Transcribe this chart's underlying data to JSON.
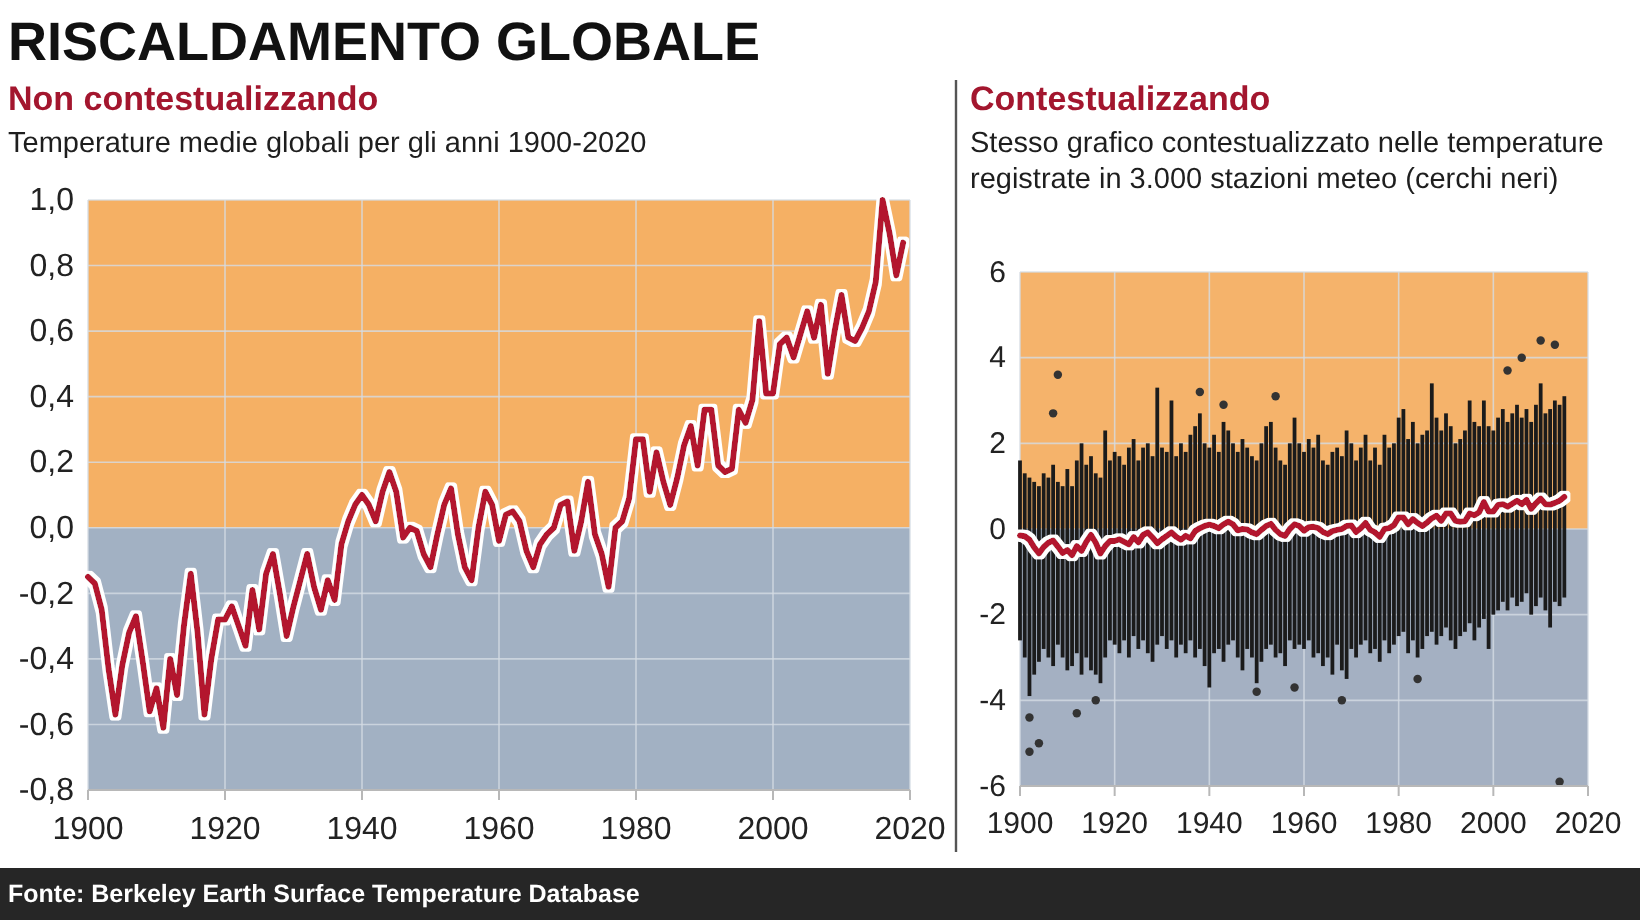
{
  "chart_data": [
    {
      "type": "line",
      "title": "Non contestualizzando",
      "subtitle": "Temperature medie globali per gli anni 1900-2020",
      "annotations": [
        "RISCALDAMENTO GLOBALE",
        "Fonte: Berkeley Earth Surface Temperature Database"
      ],
      "x": [
        1900,
        1901,
        1902,
        1903,
        1904,
        1905,
        1906,
        1907,
        1908,
        1909,
        1910,
        1911,
        1912,
        1913,
        1914,
        1915,
        1916,
        1917,
        1918,
        1919,
        1920,
        1921,
        1922,
        1923,
        1924,
        1925,
        1926,
        1927,
        1928,
        1929,
        1930,
        1931,
        1932,
        1933,
        1934,
        1935,
        1936,
        1937,
        1938,
        1939,
        1940,
        1941,
        1942,
        1943,
        1944,
        1945,
        1946,
        1947,
        1948,
        1949,
        1950,
        1951,
        1952,
        1953,
        1954,
        1955,
        1956,
        1957,
        1958,
        1959,
        1960,
        1961,
        1962,
        1963,
        1964,
        1965,
        1966,
        1967,
        1968,
        1969,
        1970,
        1971,
        1972,
        1973,
        1974,
        1975,
        1976,
        1977,
        1978,
        1979,
        1980,
        1981,
        1982,
        1983,
        1984,
        1985,
        1986,
        1987,
        1988,
        1989,
        1990,
        1991,
        1992,
        1993,
        1994,
        1995,
        1996,
        1997,
        1998,
        1999,
        2000,
        2001,
        2002,
        2003,
        2004,
        2005,
        2006,
        2007,
        2008,
        2009,
        2010,
        2011,
        2012,
        2013,
        2014,
        2015,
        2016,
        2017,
        2018,
        2019
      ],
      "values": [
        -0.15,
        -0.17,
        -0.25,
        -0.43,
        -0.57,
        -0.42,
        -0.32,
        -0.27,
        -0.41,
        -0.56,
        -0.49,
        -0.61,
        -0.4,
        -0.51,
        -0.3,
        -0.14,
        -0.32,
        -0.57,
        -0.4,
        -0.28,
        -0.28,
        -0.24,
        -0.3,
        -0.36,
        -0.19,
        -0.31,
        -0.14,
        -0.08,
        -0.2,
        -0.33,
        -0.24,
        -0.16,
        -0.08,
        -0.18,
        -0.25,
        -0.16,
        -0.22,
        -0.05,
        0.02,
        0.07,
        0.1,
        0.07,
        0.02,
        0.11,
        0.17,
        0.11,
        -0.03,
        0,
        -0.01,
        -0.08,
        -0.12,
        -0.02,
        0.07,
        0.12,
        -0.02,
        -0.12,
        -0.16,
        0,
        0.11,
        0.07,
        -0.04,
        0.04,
        0.05,
        0.02,
        -0.07,
        -0.12,
        -0.05,
        -0.02,
        0,
        0.07,
        0.08,
        -0.07,
        0.02,
        0.14,
        -0.02,
        -0.08,
        -0.18,
        0,
        0.02,
        0.09,
        0.27,
        0.27,
        0.11,
        0.23,
        0.14,
        0.07,
        0.15,
        0.25,
        0.31,
        0.19,
        0.36,
        0.36,
        0.19,
        0.17,
        0.18,
        0.36,
        0.32,
        0.39,
        0.63,
        0.41,
        0.41,
        0.56,
        0.58,
        0.52,
        0.59,
        0.66,
        0.58,
        0.68,
        0.47,
        0.6,
        0.71,
        0.58,
        0.57,
        0.61,
        0.66,
        0.75,
        1.0,
        0.9,
        0.77,
        0.87
      ],
      "color": "#b3152f",
      "xlim": [
        1900,
        2020
      ],
      "xticks": [
        1900,
        1920,
        1940,
        1960,
        1980,
        2000,
        2020
      ],
      "ylim": [
        -0.8,
        1.0
      ],
      "yticks": [
        {
          "value": -0.8,
          "label": "-0,8"
        },
        {
          "value": -0.6,
          "label": "-0,6"
        },
        {
          "value": -0.4,
          "label": "-0,4"
        },
        {
          "value": -0.2,
          "label": "-0,2"
        },
        {
          "value": 0,
          "label": "0,0"
        },
        {
          "value": 0.2,
          "label": "0,2"
        },
        {
          "value": 0.4,
          "label": "0,4"
        },
        {
          "value": 0.6,
          "label": "0,6"
        },
        {
          "value": 0.8,
          "label": "0,8"
        },
        {
          "value": 1.0,
          "label": "1,0"
        }
      ],
      "grid": true,
      "bands": [
        {
          "axis": "y",
          "from": 0,
          "to": 1.0,
          "color": "#f5b064"
        },
        {
          "axis": "y",
          "from": -0.8,
          "to": 0,
          "color": "#a2b1c3"
        }
      ]
    },
    {
      "type": "bar",
      "title": "Contestualizzando",
      "subtitle": "Stesso grafico contestualizzato nelle temperature registrate in 3.000 stazioni meteo (cerchi neri)",
      "x": [
        1900,
        1901,
        1902,
        1903,
        1904,
        1905,
        1906,
        1907,
        1908,
        1909,
        1910,
        1911,
        1912,
        1913,
        1914,
        1915,
        1916,
        1917,
        1918,
        1919,
        1920,
        1921,
        1922,
        1923,
        1924,
        1925,
        1926,
        1927,
        1928,
        1929,
        1930,
        1931,
        1932,
        1933,
        1934,
        1935,
        1936,
        1937,
        1938,
        1939,
        1940,
        1941,
        1942,
        1943,
        1944,
        1945,
        1946,
        1947,
        1948,
        1949,
        1950,
        1951,
        1952,
        1953,
        1954,
        1955,
        1956,
        1957,
        1958,
        1959,
        1960,
        1961,
        1962,
        1963,
        1964,
        1965,
        1966,
        1967,
        1968,
        1969,
        1970,
        1971,
        1972,
        1973,
        1974,
        1975,
        1976,
        1977,
        1978,
        1979,
        1980,
        1981,
        1982,
        1983,
        1984,
        1985,
        1986,
        1987,
        1988,
        1989,
        1990,
        1991,
        1992,
        1993,
        1994,
        1995,
        1996,
        1997,
        1998,
        1999,
        2000,
        2001,
        2002,
        2003,
        2004,
        2005,
        2006,
        2007,
        2008,
        2009,
        2010,
        2011,
        2012,
        2013,
        2014,
        2015
      ],
      "series": [
        {
          "color": "#1b1b1b",
          "base": [
            -2.6,
            -3.0,
            -3.9,
            -3.4,
            -3.1,
            -2.8,
            -3.0,
            -3.2,
            -2.7,
            -3.0,
            -3.3,
            -3.2,
            -2.9,
            -3.4,
            -3.0,
            -3.3,
            -3.4,
            -3.6,
            -3.0,
            -2.6,
            -2.7,
            -2.9,
            -2.6,
            -3.0,
            -2.5,
            -2.8,
            -2.6,
            -2.9,
            -3.1,
            -2.7,
            -2.5,
            -2.8,
            -2.6,
            -3.0,
            -2.7,
            -2.9,
            -2.6,
            -3.0,
            -2.8,
            -3.2,
            -3.7,
            -2.9,
            -2.8,
            -3.1,
            -2.7,
            -2.6,
            -3.0,
            -3.3,
            -2.8,
            -3.0,
            -3.6,
            -3.1,
            -2.8,
            -2.7,
            -3.0,
            -2.9,
            -3.2,
            -2.6,
            -2.8,
            -2.7,
            -2.8,
            -2.6,
            -3.0,
            -2.9,
            -3.2,
            -3.0,
            -3.4,
            -2.7,
            -3.3,
            -3.5,
            -2.8,
            -3.0,
            -2.7,
            -2.6,
            -2.9,
            -2.8,
            -3.1,
            -2.6,
            -2.9,
            -2.7,
            -2.5,
            -2.4,
            -2.9,
            -2.6,
            -3.0,
            -2.8,
            -2.5,
            -2.4,
            -2.7,
            -2.5,
            -2.3,
            -2.6,
            -2.8,
            -2.5,
            -2.4,
            -2.2,
            -2.6,
            -2.3,
            -2.1,
            -2.8,
            -2.0,
            -1.9,
            -1.7,
            -1.9,
            -1.6,
            -1.8,
            -1.7,
            -1.5,
            -2.0,
            -1.8,
            -1.6,
            -1.9,
            -2.3,
            -1.7,
            -1.8,
            -1.6
          ],
          "values": [
            4.2,
            4.3,
            5.1,
            4.5,
            4.1,
            4.1,
            4.2,
            4.7,
            3.8,
            4.0,
            4.7,
            4.2,
            4.5,
            5.4,
            4.5,
            5.0,
            4.7,
            4.8,
            5.3,
            4.2,
            4.5,
            4.6,
            4.1,
            4.9,
            4.6,
            4.4,
            4.5,
            4.9,
            4.8,
            6.0,
            4.4,
            4.6,
            5.6,
            4.7,
            4.7,
            4.7,
            4.8,
            5.4,
            5.5,
            5.2,
            5.6,
            5.1,
            4.6,
            5.6,
            5.0,
            4.6,
            4.8,
            5.4,
            4.7,
            4.7,
            5.2,
            5.1,
            5.2,
            5.2,
            4.9,
            4.5,
            4.7,
            4.6,
            5.4,
            4.7,
            4.6,
            4.7,
            4.9,
            5.1,
            4.8,
            4.5,
            5.2,
            4.6,
            5.0,
            5.8,
            4.8,
            4.6,
            4.6,
            4.8,
            4.5,
            4.7,
            4.6,
            4.8,
            4.8,
            4.7,
            5.1,
            5.2,
            5.0,
            5.1,
            5.0,
            5.0,
            4.8,
            5.8,
            5.3,
            4.8,
            5.0,
            5.0,
            4.8,
            4.6,
            4.7,
            5.2,
            5.1,
            4.7,
            5.1,
            5.2,
            4.3,
            4.5,
            4.5,
            4.4,
            4.3,
            4.7,
            4.3,
            4.3,
            4.5,
            4.7,
            5.0,
            4.6,
            5.1,
            4.7,
            4.7,
            4.7
          ]
        },
        {
          "type": "line",
          "color": "#b3152f",
          "values": [
            -0.15,
            -0.17,
            -0.25,
            -0.43,
            -0.57,
            -0.42,
            -0.32,
            -0.27,
            -0.41,
            -0.56,
            -0.49,
            -0.61,
            -0.4,
            -0.51,
            -0.3,
            -0.14,
            -0.32,
            -0.57,
            -0.4,
            -0.28,
            -0.28,
            -0.24,
            -0.3,
            -0.36,
            -0.19,
            -0.31,
            -0.14,
            -0.08,
            -0.2,
            -0.33,
            -0.24,
            -0.16,
            -0.08,
            -0.18,
            -0.25,
            -0.16,
            -0.22,
            -0.05,
            0.02,
            0.07,
            0.1,
            0.07,
            0.02,
            0.11,
            0.17,
            0.11,
            -0.03,
            0,
            -0.01,
            -0.08,
            -0.12,
            -0.02,
            0.07,
            0.12,
            -0.02,
            -0.12,
            -0.16,
            0,
            0.11,
            0.07,
            -0.04,
            0.04,
            0.05,
            0.02,
            -0.07,
            -0.12,
            -0.05,
            -0.02,
            0,
            0.07,
            0.08,
            -0.07,
            0.02,
            0.14,
            -0.02,
            -0.08,
            -0.18,
            0,
            0.02,
            0.09,
            0.27,
            0.27,
            0.11,
            0.23,
            0.14,
            0.07,
            0.15,
            0.25,
            0.31,
            0.19,
            0.36,
            0.36,
            0.19,
            0.17,
            0.18,
            0.36,
            0.32,
            0.39,
            0.63,
            0.41,
            0.41,
            0.56,
            0.58,
            0.52,
            0.59,
            0.66,
            0.58,
            0.68,
            0.47,
            0.6,
            0.71,
            0.58,
            0.57,
            0.61,
            0.66,
            0.75
          ]
        },
        {
          "type": "scatter",
          "color": "#333333",
          "marker": "circle",
          "x": [
            1902,
            1902,
            1904,
            1907,
            1908,
            1912,
            1916,
            1938,
            1943,
            1950,
            1954,
            1958,
            1968,
            1984,
            2003,
            2006,
            2010,
            2013,
            2014
          ],
          "values": [
            -4.4,
            -5.2,
            -5.0,
            2.7,
            3.6,
            -4.3,
            -4.0,
            3.2,
            2.9,
            -3.8,
            3.1,
            -3.7,
            -4.0,
            -3.5,
            3.7,
            4.0,
            4.4,
            4.3,
            -5.9
          ]
        }
      ],
      "xlim": [
        1900,
        2020
      ],
      "xticks": [
        1900,
        1920,
        1940,
        1960,
        1980,
        2000,
        2020
      ],
      "ylim": [
        -6,
        6
      ],
      "yticks": [
        -6,
        -4,
        -2,
        0,
        2,
        4,
        6
      ],
      "grid": true,
      "bands": [
        {
          "axis": "y",
          "from": 0,
          "to": 6,
          "color": "#f5b36b"
        },
        {
          "axis": "y",
          "from": -6,
          "to": 0,
          "color": "#a4b0c2"
        }
      ]
    }
  ]
}
